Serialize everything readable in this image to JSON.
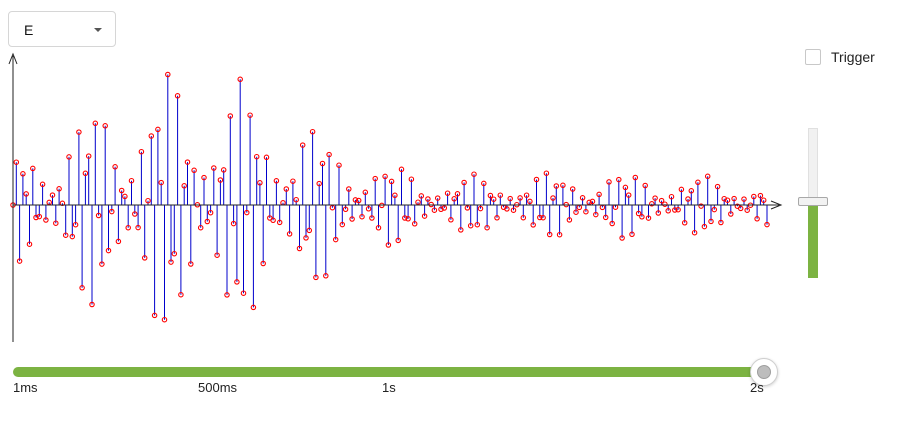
{
  "dropdown": {
    "value": "E"
  },
  "trigger": {
    "label": "Trigger",
    "checked": false
  },
  "amplitude_slider": {
    "level": 0.5
  },
  "time_slider": {
    "labels": [
      "1ms",
      "500ms",
      "1s",
      "2s"
    ],
    "value": "2s",
    "fraction": 1.0
  },
  "chart_data": {
    "type": "line",
    "description_color_line": "#0000cc",
    "description_color_marker": "#ff0000",
    "stem_color": "#0000cc",
    "marker_color": "#ff0000",
    "x_arrow": true,
    "y_arrow": true
  }
}
